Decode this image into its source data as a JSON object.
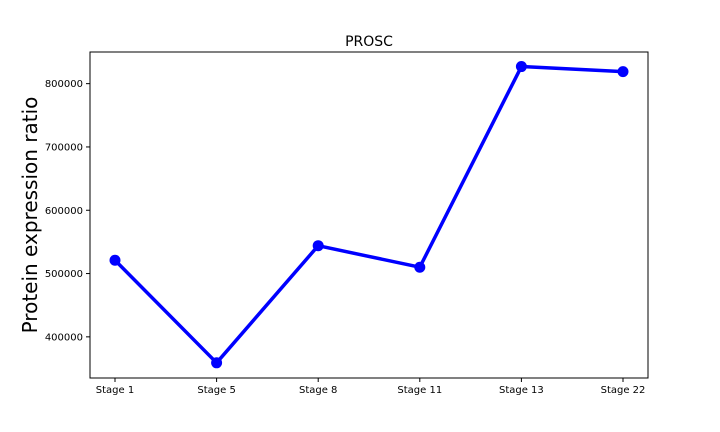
{
  "chart_data": {
    "type": "line",
    "title": "PROSC",
    "xlabel": "",
    "ylabel": "Protein expression ratio",
    "categories": [
      "Stage 1",
      "Stage 5",
      "Stage 8",
      "Stage 11",
      "Stage 13",
      "Stage 22"
    ],
    "series": [
      {
        "values": [
          521000,
          359000,
          544000,
          510000,
          827000,
          819000
        ]
      }
    ],
    "ylim": [
      335000,
      850000
    ],
    "yticks": [
      400000,
      500000,
      600000,
      700000,
      800000
    ],
    "ytick_labels": [
      "400000",
      "500000",
      "600000",
      "700000",
      "800000"
    ],
    "grid": false,
    "legend": "none",
    "colors": {
      "line": "#0000ff",
      "axes": "#000000",
      "background": "#ffffff"
    }
  }
}
